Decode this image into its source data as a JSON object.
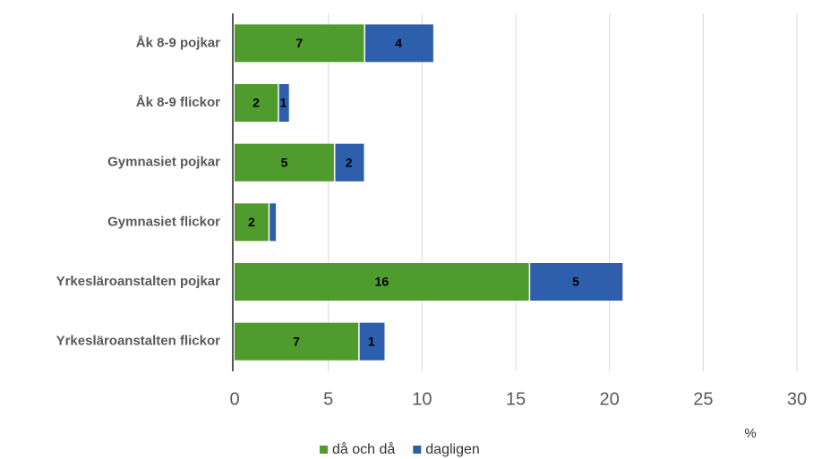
{
  "chart_data": {
    "type": "stacked_barh",
    "categories": [
      "Åk 8-9 pojkar",
      "Åk 8-9 flickor",
      "Gymnasiet pojkar",
      "Gymnasiet flickor",
      "Yrkesläroanstalten pojkar",
      "Yrkesläroanstalten flickor"
    ],
    "series": [
      {
        "name": "då och då",
        "color": "#509b2e",
        "values": [
          6.9,
          2.3,
          5.3,
          1.8,
          15.7,
          6.6
        ],
        "value_labels": [
          "7",
          "2",
          "5",
          "2",
          "16",
          "7"
        ]
      },
      {
        "name": "dagligen",
        "color": "#2e5fac",
        "values": [
          3.7,
          0.6,
          1.6,
          0.4,
          5.0,
          1.4
        ],
        "value_labels": [
          "4",
          "1",
          "2",
          null,
          "5",
          "1"
        ]
      }
    ],
    "xlim": [
      0,
      30
    ],
    "xticks": [
      0,
      5,
      10,
      15,
      20,
      25,
      30
    ],
    "xlabel": "%",
    "grid": true
  }
}
